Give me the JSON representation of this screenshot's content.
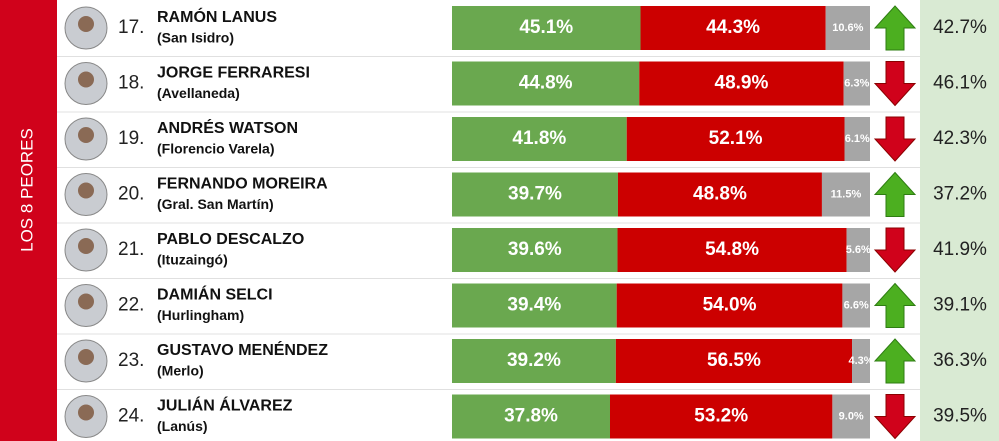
{
  "section_label": "LOS 8 PEORES",
  "bar_colors": {
    "approve": "#6aa84f",
    "disapprove": "#cc0000",
    "nsnc": "#a6a6a6"
  },
  "rows": [
    {
      "rank": "17.",
      "name": "RAMÓN LANUS",
      "city": "(San Isidro)",
      "approve": {
        "value": 45.1,
        "label": "45.1%"
      },
      "disapprove": {
        "value": 44.3,
        "label": "44.3%"
      },
      "nsnc": {
        "value": 10.6,
        "label": "10.6%"
      },
      "trend": "up",
      "previous": "42.7%"
    },
    {
      "rank": "18.",
      "name": "JORGE FERRARESI",
      "city": "(Avellaneda)",
      "approve": {
        "value": 44.8,
        "label": "44.8%"
      },
      "disapprove": {
        "value": 48.9,
        "label": "48.9%"
      },
      "nsnc": {
        "value": 6.3,
        "label": "6.3%"
      },
      "trend": "down",
      "previous": "46.1%"
    },
    {
      "rank": "19.",
      "name": "ANDRÉS WATSON",
      "city": "(Florencio Varela)",
      "approve": {
        "value": 41.8,
        "label": "41.8%"
      },
      "disapprove": {
        "value": 52.1,
        "label": "52.1%"
      },
      "nsnc": {
        "value": 6.1,
        "label": "6.1%"
      },
      "trend": "down",
      "previous": "42.3%"
    },
    {
      "rank": "20.",
      "name": "FERNANDO MOREIRA",
      "city": "(Gral. San Martín)",
      "approve": {
        "value": 39.7,
        "label": "39.7%"
      },
      "disapprove": {
        "value": 48.8,
        "label": "48.8%"
      },
      "nsnc": {
        "value": 11.5,
        "label": "11.5%"
      },
      "trend": "up",
      "previous": "37.2%"
    },
    {
      "rank": "21.",
      "name": "PABLO DESCALZO",
      "city": "(Ituzaingó)",
      "approve": {
        "value": 39.6,
        "label": "39.6%"
      },
      "disapprove": {
        "value": 54.8,
        "label": "54.8%"
      },
      "nsnc": {
        "value": 5.6,
        "label": "5.6%"
      },
      "trend": "down",
      "previous": "41.9%"
    },
    {
      "rank": "22.",
      "name": "DAMIÁN SELCI",
      "city": "(Hurlingham)",
      "approve": {
        "value": 39.4,
        "label": "39.4%"
      },
      "disapprove": {
        "value": 54.0,
        "label": "54.0%"
      },
      "nsnc": {
        "value": 6.6,
        "label": "6.6%"
      },
      "trend": "up",
      "previous": "39.1%"
    },
    {
      "rank": "23.",
      "name": "GUSTAVO MENÉNDEZ",
      "city": "(Merlo)",
      "approve": {
        "value": 39.2,
        "label": "39.2%"
      },
      "disapprove": {
        "value": 56.5,
        "label": "56.5%"
      },
      "nsnc": {
        "value": 4.3,
        "label": "4.3%"
      },
      "trend": "up",
      "previous": "36.3%"
    },
    {
      "rank": "24.",
      "name": "JULIÁN ÁLVAREZ",
      "city": "(Lanús)",
      "approve": {
        "value": 37.8,
        "label": "37.8%"
      },
      "disapprove": {
        "value": 53.2,
        "label": "53.2%"
      },
      "nsnc": {
        "value": 9.0,
        "label": "9.0%"
      },
      "trend": "down",
      "previous": "39.5%"
    }
  ]
}
